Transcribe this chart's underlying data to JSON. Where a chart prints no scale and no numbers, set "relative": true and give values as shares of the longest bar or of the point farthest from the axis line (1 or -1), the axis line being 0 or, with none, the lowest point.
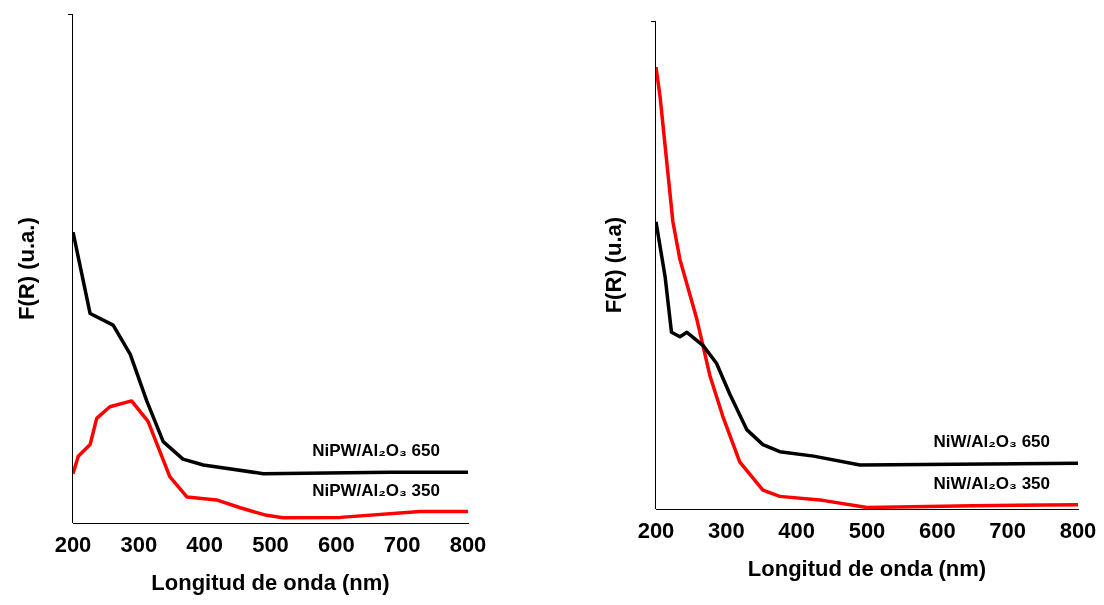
{
  "chart_data": [
    {
      "type": "line",
      "xlabel": "Longitud de onda (nm)",
      "ylabel": "F(R) (u.a.)",
      "relative": true,
      "marker": "none",
      "xlim": [
        200,
        800
      ],
      "xticks": [
        200,
        300,
        400,
        500,
        600,
        700,
        800
      ],
      "series": [
        {
          "name": "NiPW/Al₂O₃ 650",
          "color": "#000000",
          "x": [
            200,
            226,
            261,
            287,
            312,
            337,
            367,
            398,
            489,
            682,
            800
          ],
          "values": [
            1.0,
            0.72,
            0.68,
            0.58,
            0.42,
            0.28,
            0.22,
            0.2,
            0.17,
            0.175,
            0.175
          ]
        },
        {
          "name": "NiPW/Al₂O₃ 350",
          "color": "#ff0000",
          "x": [
            200,
            208,
            226,
            236,
            256,
            289,
            314,
            347,
            373,
            418,
            454,
            494,
            519,
            606,
            727,
            800
          ],
          "values": [
            0.17,
            0.23,
            0.27,
            0.36,
            0.4,
            0.42,
            0.35,
            0.16,
            0.09,
            0.08,
            0.053,
            0.027,
            0.019,
            0.02,
            0.04,
            0.04
          ]
        }
      ]
    },
    {
      "type": "line",
      "xlabel": "Longitud de onda (nm)",
      "ylabel": "F(R) (u.a)",
      "relative": true,
      "marker": "none",
      "xlim": [
        200,
        800
      ],
      "xticks": [
        200,
        300,
        400,
        500,
        600,
        700,
        800
      ],
      "series": [
        {
          "name": "NiW/Al₂O₃ 650",
          "color": "#000000",
          "x": [
            200,
            213,
            222,
            234,
            244,
            267,
            286,
            305,
            329,
            352,
            376,
            424,
            490,
            800
          ],
          "values": [
            0.65,
            0.525,
            0.4,
            0.39,
            0.4,
            0.37,
            0.33,
            0.26,
            0.18,
            0.146,
            0.13,
            0.12,
            0.1,
            0.104
          ]
        },
        {
          "name": "NiW/Al₂O₃ 350",
          "color": "#ff0000",
          "x": [
            200,
            206,
            224,
            234,
            258,
            277,
            295,
            319,
            352,
            376,
            437,
            500,
            651,
            800
          ],
          "values": [
            1.0,
            0.93,
            0.65,
            0.565,
            0.43,
            0.3,
            0.21,
            0.107,
            0.043,
            0.029,
            0.02,
            0.004,
            0.008,
            0.01
          ]
        }
      ]
    }
  ]
}
